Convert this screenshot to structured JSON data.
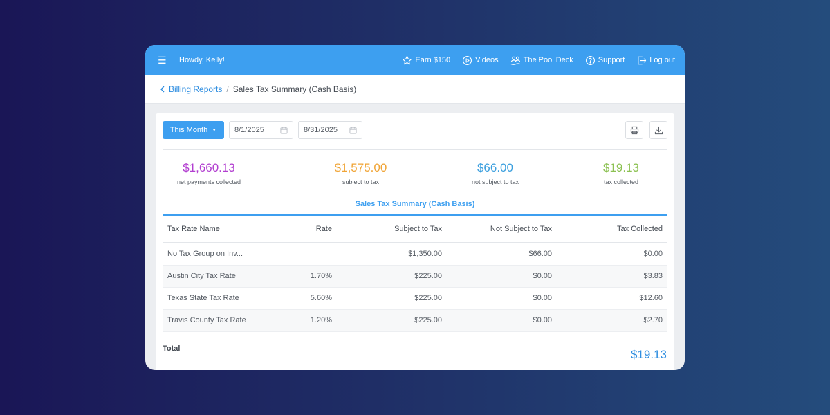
{
  "topbar": {
    "greeting": "Howdy, Kelly!",
    "menu_icon": "hamburger-menu-icon",
    "nav": [
      {
        "label": "Earn $150",
        "icon": "star-icon"
      },
      {
        "label": "Videos",
        "icon": "play-circle-icon"
      },
      {
        "label": "The Pool Deck",
        "icon": "community-icon"
      },
      {
        "label": "Support",
        "icon": "help-circle-icon"
      },
      {
        "label": "Log out",
        "icon": "logout-icon"
      }
    ]
  },
  "breadcrumb": {
    "parent": "Billing Reports",
    "separator": "/",
    "current": "Sales Tax Summary (Cash Basis)"
  },
  "filters": {
    "period": "This Month",
    "start_date": "8/1/2025",
    "end_date": "8/31/2025"
  },
  "stats": [
    {
      "value": "$1,660.13",
      "label": "net payments collected",
      "color": "#b23fd0"
    },
    {
      "value": "$1,575.00",
      "label": "subject to tax",
      "color": "#f0a435"
    },
    {
      "value": "$66.00",
      "label": "not subject to tax",
      "color": "#3b9fde"
    },
    {
      "value": "$19.13",
      "label": "tax collected",
      "color": "#8cc152"
    }
  ],
  "section_title": "Sales Tax Summary (Cash Basis)",
  "table": {
    "headers": [
      "Tax Rate Name",
      "Rate",
      "Subject to Tax",
      "Not Subject to Tax",
      "Tax Collected"
    ],
    "rows": [
      [
        "No Tax Group on Inv...",
        "",
        "$1,350.00",
        "$66.00",
        "$0.00"
      ],
      [
        "Austin City Tax Rate",
        "1.70%",
        "$225.00",
        "$0.00",
        "$3.83"
      ],
      [
        "Texas State Tax Rate",
        "5.60%",
        "$225.00",
        "$0.00",
        "$12.60"
      ],
      [
        "Travis County Tax Rate",
        "1.20%",
        "$225.00",
        "$0.00",
        "$2.70"
      ]
    ]
  },
  "total": {
    "label": "Total",
    "value": "$19.13"
  },
  "colors": {
    "accent": "#3d9ff0",
    "link": "#2d8de0"
  }
}
